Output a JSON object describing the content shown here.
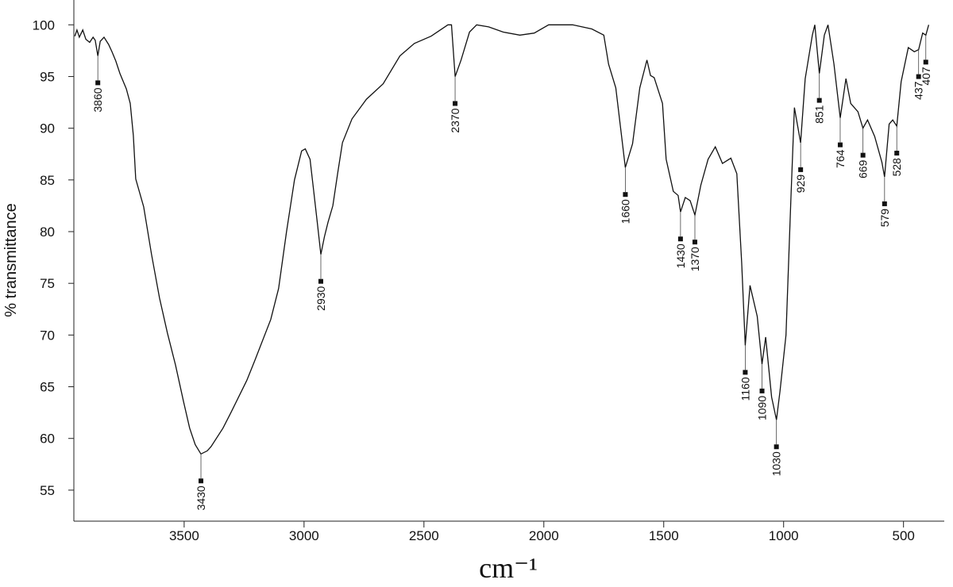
{
  "chart_data": {
    "type": "line",
    "x_label": "cm⁻¹",
    "y_label": "% transmittance",
    "color": "#111111",
    "x": [
      3956,
      3947,
      3937,
      3923,
      3910,
      3894,
      3880,
      3871,
      3860,
      3850,
      3834,
      3815,
      3801,
      3785,
      3768,
      3741,
      3725,
      3712,
      3702,
      3669,
      3636,
      3603,
      3570,
      3536,
      3503,
      3477,
      3454,
      3430,
      3404,
      3388,
      3338,
      3305,
      3239,
      3206,
      3139,
      3106,
      3073,
      3040,
      3010,
      2995,
      2975,
      2960,
      2945,
      2930,
      2915,
      2900,
      2880,
      2860,
      2840,
      2800,
      2740,
      2670,
      2600,
      2540,
      2470,
      2400,
      2385,
      2370,
      2345,
      2310,
      2280,
      2230,
      2170,
      2100,
      2040,
      1980,
      1880,
      1800,
      1750,
      1730,
      1700,
      1660,
      1630,
      1600,
      1570,
      1555,
      1540,
      1505,
      1490,
      1460,
      1440,
      1430,
      1410,
      1390,
      1370,
      1345,
      1315,
      1285,
      1255,
      1220,
      1195,
      1175,
      1160,
      1140,
      1110,
      1090,
      1075,
      1050,
      1030,
      1015,
      990,
      970,
      955,
      929,
      910,
      880,
      870,
      851,
      830,
      815,
      790,
      764,
      740,
      720,
      690,
      669,
      650,
      620,
      590,
      579,
      560,
      545,
      528,
      510,
      480,
      455,
      437,
      420,
      407,
      395
    ],
    "values": [
      98.9,
      99.5,
      98.8,
      99.5,
      98.6,
      98.3,
      98.8,
      98.5,
      97.0,
      98.4,
      98.8,
      98.1,
      97.4,
      96.5,
      95.3,
      93.8,
      92.4,
      89.3,
      85.1,
      82.4,
      77.8,
      73.6,
      70.2,
      67.1,
      63.6,
      61.0,
      59.4,
      58.5,
      58.8,
      59.2,
      61.0,
      62.5,
      65.6,
      67.5,
      71.5,
      74.5,
      80.0,
      85.0,
      87.8,
      88.0,
      87.0,
      84.0,
      80.9,
      77.8,
      79.5,
      80.9,
      82.5,
      85.6,
      88.6,
      90.9,
      92.8,
      94.3,
      97.0,
      98.2,
      98.9,
      100,
      100,
      95.0,
      96.6,
      99.3,
      100,
      99.8,
      99.3,
      99.0,
      99.2,
      100,
      100,
      99.6,
      99.0,
      96.2,
      93.9,
      86.2,
      88.5,
      93.9,
      96.6,
      95.1,
      94.9,
      92.4,
      87.0,
      83.9,
      83.5,
      81.9,
      83.3,
      83.0,
      81.6,
      84.5,
      87.0,
      88.2,
      86.6,
      87.1,
      85.6,
      77.0,
      69.0,
      74.8,
      71.8,
      67.2,
      69.8,
      64.0,
      61.8,
      64.6,
      70.0,
      83.0,
      92.0,
      88.6,
      94.8,
      99.0,
      100,
      95.3,
      99.0,
      100,
      96.2,
      91.0,
      94.8,
      92.4,
      91.6,
      90.0,
      90.8,
      89.2,
      86.7,
      85.3,
      90.4,
      90.8,
      90.2,
      94.5,
      97.8,
      97.4,
      97.6,
      99.2,
      99.0,
      100
    ],
    "peaks": [
      {
        "x": 3860,
        "y": 97.0
      },
      {
        "x": 3430,
        "y": 58.5
      },
      {
        "x": 2930,
        "y": 77.8
      },
      {
        "x": 2370,
        "y": 95.0
      },
      {
        "x": 1660,
        "y": 86.2
      },
      {
        "x": 1430,
        "y": 81.9
      },
      {
        "x": 1370,
        "y": 81.6
      },
      {
        "x": 1160,
        "y": 69.0
      },
      {
        "x": 1090,
        "y": 67.2
      },
      {
        "x": 1030,
        "y": 61.8
      },
      {
        "x": 929,
        "y": 88.6
      },
      {
        "x": 851,
        "y": 95.3
      },
      {
        "x": 764,
        "y": 91.0
      },
      {
        "x": 669,
        "y": 90.0
      },
      {
        "x": 579,
        "y": 85.3
      },
      {
        "x": 528,
        "y": 90.2
      },
      {
        "x": 437,
        "y": 97.6
      },
      {
        "x": 407,
        "y": 99.0
      }
    ],
    "xlim": [
      3960,
      330
    ],
    "ylim": [
      52,
      102.4
    ],
    "xticks": [
      3500,
      3000,
      2500,
      2000,
      1500,
      1000,
      500
    ],
    "yticks": [
      55,
      60,
      65,
      70,
      75,
      80,
      85,
      90,
      95,
      100
    ]
  }
}
